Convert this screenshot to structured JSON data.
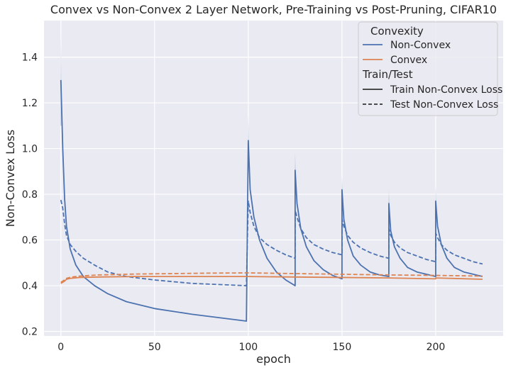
{
  "chart_data": {
    "type": "line",
    "title": "Convex vs Non-Convex 2 Layer Network, Pre-Training vs Post-Pruning, CIFAR10",
    "xlabel": "epoch",
    "ylabel": "Non-Convex Loss",
    "xlim": [
      -9,
      236
    ],
    "ylim": [
      0.18,
      1.56
    ],
    "xticks": [
      0,
      50,
      100,
      150,
      200
    ],
    "yticks": [
      0.2,
      0.4,
      0.6,
      0.8,
      1.0,
      1.2,
      1.4
    ],
    "xtick_labels": [
      "0",
      "50",
      "100",
      "150",
      "200"
    ],
    "ytick_labels": [
      "0.2",
      "0.4",
      "0.6",
      "0.8",
      "1.0",
      "1.2",
      "1.4"
    ],
    "grid": true,
    "background": "#eaeaf2",
    "legend": {
      "placement": "top-right",
      "hue_title": "Convexity",
      "style_title": "Train/Test",
      "hue_entries": [
        {
          "label": "Non-Convex",
          "color": "#4c72b0"
        },
        {
          "label": "Convex",
          "color": "#dd8452"
        }
      ],
      "style_entries": [
        {
          "label": "Train Non-Convex Loss",
          "dash": "solid"
        },
        {
          "label": "Test Non-Convex Loss",
          "dash": "dashed"
        }
      ]
    },
    "series": [
      {
        "name": "Non-Convex",
        "style": "Train Non-Convex Loss",
        "color": "#4c72b0",
        "dash": "solid",
        "points": [
          [
            0,
            1.3
          ],
          [
            1,
            1.0
          ],
          [
            2,
            0.78
          ],
          [
            3,
            0.66
          ],
          [
            5,
            0.56
          ],
          [
            8,
            0.49
          ],
          [
            12,
            0.44
          ],
          [
            18,
            0.4
          ],
          [
            25,
            0.365
          ],
          [
            35,
            0.33
          ],
          [
            50,
            0.3
          ],
          [
            70,
            0.275
          ],
          [
            99,
            0.245
          ],
          [
            100,
            1.035
          ],
          [
            101,
            0.82
          ],
          [
            103,
            0.7
          ],
          [
            106,
            0.6
          ],
          [
            110,
            0.52
          ],
          [
            115,
            0.46
          ],
          [
            120,
            0.425
          ],
          [
            125,
            0.4
          ],
          [
            125,
            0.905
          ],
          [
            126,
            0.76
          ],
          [
            128,
            0.65
          ],
          [
            131,
            0.57
          ],
          [
            135,
            0.51
          ],
          [
            140,
            0.47
          ],
          [
            145,
            0.445
          ],
          [
            150,
            0.43
          ],
          [
            150,
            0.82
          ],
          [
            151,
            0.69
          ],
          [
            153,
            0.6
          ],
          [
            156,
            0.53
          ],
          [
            160,
            0.49
          ],
          [
            165,
            0.46
          ],
          [
            170,
            0.447
          ],
          [
            175,
            0.44
          ],
          [
            175,
            0.76
          ],
          [
            176,
            0.64
          ],
          [
            178,
            0.57
          ],
          [
            181,
            0.52
          ],
          [
            185,
            0.48
          ],
          [
            190,
            0.46
          ],
          [
            195,
            0.45
          ],
          [
            200,
            0.44
          ],
          [
            200,
            0.77
          ],
          [
            201,
            0.66
          ],
          [
            203,
            0.58
          ],
          [
            206,
            0.52
          ],
          [
            210,
            0.48
          ],
          [
            215,
            0.46
          ],
          [
            220,
            0.45
          ],
          [
            225,
            0.44
          ]
        ]
      },
      {
        "name": "Non-Convex",
        "style": "Test Non-Convex Loss",
        "color": "#4c72b0",
        "dash": "dashed",
        "points": [
          [
            0,
            0.775
          ],
          [
            1,
            0.74
          ],
          [
            2,
            0.67
          ],
          [
            3,
            0.62
          ],
          [
            5,
            0.58
          ],
          [
            8,
            0.55
          ],
          [
            12,
            0.52
          ],
          [
            18,
            0.49
          ],
          [
            25,
            0.46
          ],
          [
            35,
            0.44
          ],
          [
            50,
            0.425
          ],
          [
            70,
            0.41
          ],
          [
            99,
            0.4
          ],
          [
            100,
            0.77
          ],
          [
            101,
            0.72
          ],
          [
            103,
            0.66
          ],
          [
            106,
            0.61
          ],
          [
            110,
            0.58
          ],
          [
            115,
            0.555
          ],
          [
            120,
            0.535
          ],
          [
            125,
            0.52
          ],
          [
            125,
            0.73
          ],
          [
            126,
            0.7
          ],
          [
            128,
            0.65
          ],
          [
            131,
            0.61
          ],
          [
            135,
            0.58
          ],
          [
            140,
            0.56
          ],
          [
            145,
            0.545
          ],
          [
            150,
            0.535
          ],
          [
            150,
            0.69
          ],
          [
            151,
            0.66
          ],
          [
            153,
            0.62
          ],
          [
            156,
            0.59
          ],
          [
            160,
            0.565
          ],
          [
            165,
            0.545
          ],
          [
            170,
            0.53
          ],
          [
            175,
            0.52
          ],
          [
            175,
            0.65
          ],
          [
            176,
            0.62
          ],
          [
            178,
            0.59
          ],
          [
            181,
            0.565
          ],
          [
            185,
            0.545
          ],
          [
            190,
            0.53
          ],
          [
            195,
            0.515
          ],
          [
            200,
            0.505
          ],
          [
            200,
            0.63
          ],
          [
            201,
            0.61
          ],
          [
            203,
            0.58
          ],
          [
            206,
            0.555
          ],
          [
            210,
            0.535
          ],
          [
            215,
            0.52
          ],
          [
            220,
            0.505
          ],
          [
            225,
            0.495
          ]
        ]
      },
      {
        "name": "Convex",
        "style": "Train Non-Convex Loss",
        "color": "#dd8452",
        "dash": "solid",
        "points": [
          [
            0,
            0.41
          ],
          [
            1,
            0.415
          ],
          [
            2,
            0.42
          ],
          [
            3,
            0.428
          ],
          [
            5,
            0.432
          ],
          [
            10,
            0.436
          ],
          [
            20,
            0.438
          ],
          [
            40,
            0.44
          ],
          [
            60,
            0.44
          ],
          [
            80,
            0.44
          ],
          [
            99,
            0.44
          ],
          [
            100,
            0.44
          ],
          [
            125,
            0.438
          ],
          [
            150,
            0.436
          ],
          [
            175,
            0.434
          ],
          [
            200,
            0.43
          ],
          [
            200,
            0.434
          ],
          [
            225,
            0.428
          ]
        ]
      },
      {
        "name": "Convex",
        "style": "Test Non-Convex Loss",
        "color": "#dd8452",
        "dash": "dashed",
        "points": [
          [
            0,
            0.415
          ],
          [
            1,
            0.42
          ],
          [
            2,
            0.426
          ],
          [
            3,
            0.432
          ],
          [
            5,
            0.437
          ],
          [
            10,
            0.442
          ],
          [
            20,
            0.447
          ],
          [
            40,
            0.451
          ],
          [
            60,
            0.453
          ],
          [
            80,
            0.455
          ],
          [
            99,
            0.456
          ],
          [
            100,
            0.456
          ],
          [
            125,
            0.453
          ],
          [
            150,
            0.45
          ],
          [
            175,
            0.447
          ],
          [
            200,
            0.445
          ],
          [
            225,
            0.442
          ]
        ]
      }
    ],
    "spike_bands": [
      {
        "x": 0,
        "low": 1.1,
        "high": 1.5
      },
      {
        "x": 100,
        "low": 0.92,
        "high": 1.15
      },
      {
        "x": 125,
        "low": 0.83,
        "high": 0.98
      },
      {
        "x": 150,
        "low": 0.76,
        "high": 0.88
      },
      {
        "x": 175,
        "low": 0.7,
        "high": 0.82
      },
      {
        "x": 200,
        "low": 0.71,
        "high": 0.84
      }
    ]
  }
}
